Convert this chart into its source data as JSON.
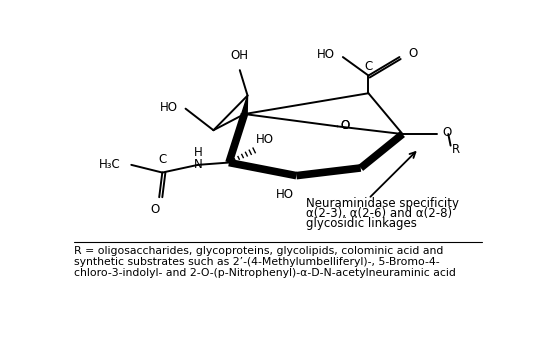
{
  "background_color": "#ffffff",
  "figure_width": 5.42,
  "figure_height": 3.6,
  "dpi": 100,
  "bottom_text_line1": "R = oligosaccharides, glycoproteins, glycolipids, colominic acid and",
  "bottom_text_line2": "synthetic substrates such as 2’-(4-Methylumbelliferyl)-, 5-Bromo-4-",
  "bottom_text_line3": "chloro-3-indolyl- and 2-O-(p-Nitrophenyl)-α-D-N-acetylneuraminic acid",
  "annotation_text_line1": "Neuraminidase specificity",
  "annotation_text_line2": "α(2-3), α(2-6) and α(2-8)",
  "annotation_text_line3": "glycosidic linkages",
  "font_size_body": 8.5,
  "font_family": "DejaVu Sans"
}
